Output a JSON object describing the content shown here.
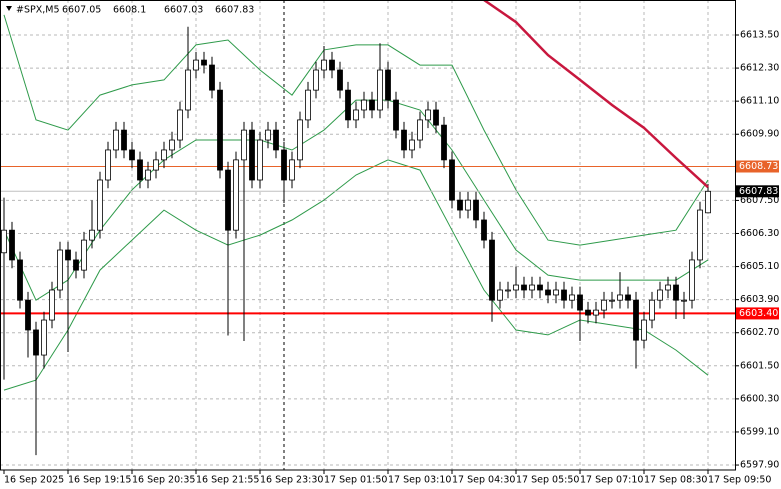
{
  "chart_data": {
    "type": "candlestick",
    "title": "#SPX,M5",
    "open": [
      6605.6,
      6606.42,
      6605.34,
      6603.88,
      6602.8,
      6601.89,
      6603.16,
      6604.25,
      6605.7,
      6605.34,
      6604.97,
      6606.06,
      6606.42,
      6608.24,
      6609.33,
      6610.05,
      6609.33,
      6608.97,
      6608.24,
      6608.6,
      6608.97,
      6609.33,
      6609.69,
      6610.78,
      6612.23,
      6612.59,
      6612.41,
      6611.5,
      6608.6,
      6606.42,
      6608.97,
      6610.05,
      6608.24,
      6609.69,
      6610.05,
      6609.33,
      6608.24,
      6608.97,
      6610.42,
      6611.5,
      6612.23,
      6612.59,
      6612.23,
      6611.5,
      6610.42,
      6610.78,
      6611.14,
      6610.78,
      6612.23,
      6611.14,
      6610.05,
      6609.33,
      6609.69,
      6610.42,
      6610.78,
      6610.23,
      6608.97,
      6607.51,
      6607.15,
      6607.51,
      6606.79,
      6606.06,
      6603.88,
      6604.25,
      6604.25,
      6604.43,
      6604.25,
      6604.43,
      6604.25,
      6604.07,
      6604.25,
      6603.88,
      6604.07,
      6603.52,
      6603.34,
      6603.52,
      6603.88,
      6603.88,
      6604.07,
      6603.88,
      6602.43,
      6603.16,
      6603.88,
      6604.25,
      6604.43,
      6603.88,
      6603.88,
      6605.34,
      6607.05
    ],
    "high": [
      6607.6,
      6606.72,
      6605.64,
      6604.18,
      6603.1,
      6603.46,
      6604.55,
      6606.0,
      6606.0,
      6605.64,
      6606.36,
      6607.5,
      6608.54,
      6609.63,
      6610.35,
      6610.35,
      6609.63,
      6609.27,
      6608.9,
      6609.27,
      6609.63,
      6609.99,
      6611.08,
      6613.8,
      6612.89,
      6612.89,
      6612.71,
      6611.8,
      6608.9,
      6609.27,
      6610.35,
      6610.35,
      6609.99,
      6610.35,
      6610.35,
      6609.63,
      6609.27,
      6610.72,
      6611.8,
      6612.53,
      6613.1,
      6612.89,
      6612.53,
      6611.8,
      6611.08,
      6611.44,
      6611.44,
      6613.2,
      6612.53,
      6611.44,
      6610.35,
      6609.99,
      6610.72,
      6611.08,
      6611.08,
      6610.53,
      6609.27,
      6607.81,
      6607.81,
      6607.81,
      6607.09,
      6606.36,
      6604.55,
      6604.55,
      6605.1,
      6604.73,
      6604.73,
      6604.73,
      6604.55,
      6604.55,
      6604.55,
      6604.37,
      6604.37,
      6603.82,
      6603.82,
      6604.18,
      6604.18,
      6604.9,
      6604.37,
      6604.18,
      6603.46,
      6604.18,
      6604.55,
      6604.73,
      6604.73,
      6604.18,
      6605.64,
      6607.45,
      6608.1
    ],
    "low": [
      6601.0,
      6605.04,
      6603.58,
      6601.8,
      6598.26,
      6601.4,
      6602.86,
      6603.95,
      6602.0,
      6604.67,
      6604.67,
      6605.76,
      6606.12,
      6607.94,
      6609.03,
      6609.03,
      6608.67,
      6607.94,
      6607.94,
      6608.3,
      6608.67,
      6609.03,
      6609.39,
      6610.48,
      6611.93,
      6612.11,
      6611.2,
      6608.3,
      6602.6,
      6606.12,
      6602.4,
      6607.94,
      6607.94,
      6609.39,
      6609.03,
      6607.4,
      6607.94,
      6608.67,
      6610.12,
      6611.2,
      6611.93,
      6611.93,
      6611.2,
      6610.12,
      6610.12,
      6610.48,
      6610.48,
      6610.48,
      6610.84,
      6609.75,
      6609.03,
      6609.03,
      6609.39,
      6610.12,
      6609.93,
      6608.67,
      6607.21,
      6606.85,
      6606.85,
      6606.49,
      6605.76,
      6603.1,
      6603.58,
      6603.95,
      6603.95,
      6603.95,
      6603.95,
      6603.95,
      6603.77,
      6603.77,
      6603.58,
      6603.58,
      6602.4,
      6603.04,
      6603.04,
      6603.22,
      6603.58,
      6603.58,
      6603.58,
      6601.4,
      6602.13,
      6602.86,
      6603.58,
      6603.95,
      6603.2,
      6603.2,
      6603.58,
      6605.04,
      6607.03
    ],
    "close": [
      6606.42,
      6605.34,
      6603.88,
      6602.8,
      6601.89,
      6603.16,
      6604.25,
      6605.7,
      6605.34,
      6604.97,
      6606.06,
      6606.42,
      6608.24,
      6609.33,
      6610.05,
      6609.33,
      6608.97,
      6608.24,
      6608.6,
      6608.97,
      6609.33,
      6609.69,
      6610.78,
      6612.23,
      6612.59,
      6612.41,
      6611.5,
      6608.6,
      6606.42,
      6608.97,
      6610.05,
      6608.24,
      6609.69,
      6610.05,
      6609.33,
      6608.24,
      6608.97,
      6610.42,
      6611.5,
      6612.23,
      6612.59,
      6612.23,
      6611.5,
      6610.42,
      6610.78,
      6611.14,
      6610.78,
      6612.23,
      6611.14,
      6610.05,
      6609.33,
      6609.69,
      6610.42,
      6610.78,
      6610.23,
      6608.97,
      6607.51,
      6607.15,
      6607.51,
      6606.79,
      6606.06,
      6603.88,
      6604.25,
      6604.25,
      6604.43,
      6604.25,
      6604.43,
      6604.25,
      6604.07,
      6604.25,
      6603.88,
      6604.07,
      6603.52,
      6603.34,
      6603.52,
      6603.88,
      6603.88,
      6604.07,
      6603.88,
      6602.43,
      6603.16,
      6603.88,
      6604.25,
      6604.43,
      6603.88,
      6603.88,
      6605.34,
      6607.15,
      6607.83
    ],
    "ylim": [
      6597.72,
      6614.77
    ],
    "yticks": [
      {
        "value": 6613.5,
        "label": "6613.50"
      },
      {
        "value": 6612.3,
        "label": "6612.30"
      },
      {
        "value": 6611.1,
        "label": "6611.10"
      },
      {
        "value": 6609.9,
        "label": "6609.90"
      },
      {
        "value": 6607.5,
        "label": "6607.50"
      },
      {
        "value": 6606.3,
        "label": "6606.30"
      },
      {
        "value": 6605.1,
        "label": "6605.10"
      },
      {
        "value": 6603.9,
        "label": "6603.90"
      },
      {
        "value": 6602.7,
        "label": "6602.70"
      },
      {
        "value": 6601.5,
        "label": "6601.50"
      },
      {
        "value": 6600.3,
        "label": "6600.30"
      },
      {
        "value": 6599.1,
        "label": "6599.10"
      },
      {
        "value": 6597.9,
        "label": "6597.90"
      }
    ],
    "xticks": [
      {
        "value": 0,
        "label": "16 Sep 2025"
      },
      {
        "value": 8,
        "label": "16 Sep 19:15"
      },
      {
        "value": 16,
        "label": "16 Sep 20:35"
      },
      {
        "value": 24,
        "label": "16 Sep 21:55"
      },
      {
        "value": 32,
        "label": "16 Sep 23:30"
      },
      {
        "value": 40,
        "label": "17 Sep 01:50"
      },
      {
        "value": 48,
        "label": "17 Sep 03:10"
      },
      {
        "value": 56,
        "label": "17 Sep 04:30"
      },
      {
        "value": 64,
        "label": "17 Sep 05:50"
      },
      {
        "value": 72,
        "label": "17 Sep 07:10"
      },
      {
        "value": 80,
        "label": "17 Sep 08:30"
      },
      {
        "value": 88,
        "label": "17 Sep 09:50"
      }
    ],
    "grid": true,
    "bands": {
      "color": "#2e9a4a",
      "x": [
        0,
        4,
        8,
        12,
        16,
        20,
        24,
        28,
        32,
        36,
        40,
        44,
        48,
        52,
        56,
        60,
        64,
        68,
        72,
        76,
        80,
        84,
        88
      ],
      "upper": [
        6614.23,
        6610.42,
        6610.05,
        6611.32,
        6611.69,
        6611.87,
        6613.14,
        6613.32,
        6612.23,
        6611.32,
        6612.96,
        6613.14,
        6613.14,
        6612.41,
        6612.41,
        6610.05,
        6607.88,
        6606.06,
        6605.88,
        6606.06,
        6606.24,
        6606.42,
        6608.24
      ],
      "middle": [
        6606.42,
        6603.88,
        6604.61,
        6606.42,
        6607.88,
        6608.97,
        6609.69,
        6609.69,
        6609.69,
        6609.33,
        6610.05,
        6611.14,
        6611.14,
        6610.78,
        6609.33,
        6607.51,
        6605.7,
        6604.79,
        6604.61,
        6604.61,
        6604.61,
        6604.61,
        6605.34
      ],
      "lower": [
        6600.62,
        6600.98,
        6602.8,
        6604.97,
        6606.06,
        6607.15,
        6606.42,
        6605.88,
        6606.24,
        6606.79,
        6607.51,
        6608.42,
        6608.97,
        6608.6,
        6606.42,
        6604.25,
        6602.8,
        6602.62,
        6603.16,
        6602.98,
        6602.8,
        6602.07,
        6601.16
      ]
    },
    "ma": {
      "color": "#c8173e",
      "x": [
        60,
        64,
        68,
        72,
        76,
        80,
        84,
        88
      ],
      "values": [
        6614.77,
        6613.97,
        6612.77,
        6611.87,
        6610.96,
        6610.13,
        6609.04,
        6607.98
      ]
    },
    "hlines": [
      {
        "value": 6608.73,
        "label": "6608.73",
        "color": "#e8632a"
      },
      {
        "value": 6603.4,
        "label": "6603.40",
        "color": "#ff0000"
      }
    ],
    "last_color": "#c0c0c0"
  }
}
